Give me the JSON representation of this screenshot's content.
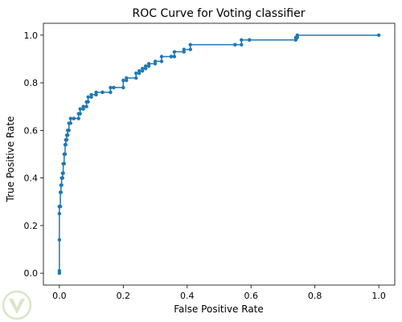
{
  "chart_data": {
    "type": "line",
    "title": "ROC Curve for Voting classifier",
    "xlabel": "False Positive Rate",
    "ylabel": "True Positive Rate",
    "xlim": [
      -0.05,
      1.05
    ],
    "ylim": [
      -0.05,
      1.05
    ],
    "xticks": [
      "0.0",
      "0.2",
      "0.4",
      "0.6",
      "0.8",
      "1.0"
    ],
    "yticks": [
      "0.0",
      "0.2",
      "0.4",
      "0.6",
      "0.8",
      "1.0"
    ],
    "grid": false,
    "marker": "dot",
    "series": [
      {
        "color": "#1f77b4",
        "x": [
          0.0,
          0.0,
          0.0,
          0.0,
          0.0,
          0.0,
          0.003,
          0.003,
          0.005,
          0.005,
          0.007,
          0.007,
          0.01,
          0.01,
          0.012,
          0.012,
          0.015,
          0.015,
          0.018,
          0.018,
          0.02,
          0.02,
          0.023,
          0.023,
          0.026,
          0.026,
          0.03,
          0.03,
          0.035,
          0.035,
          0.045,
          0.045,
          0.06,
          0.06,
          0.065,
          0.065,
          0.075,
          0.075,
          0.085,
          0.085,
          0.09,
          0.09,
          0.1,
          0.1,
          0.115,
          0.115,
          0.135,
          0.135,
          0.16,
          0.16,
          0.17,
          0.17,
          0.2,
          0.2,
          0.21,
          0.21,
          0.24,
          0.24,
          0.25,
          0.25,
          0.26,
          0.26,
          0.27,
          0.27,
          0.28,
          0.28,
          0.3,
          0.3,
          0.32,
          0.32,
          0.35,
          0.35,
          0.36,
          0.36,
          0.39,
          0.39,
          0.41,
          0.41,
          0.55,
          0.55,
          0.57,
          0.57,
          0.595,
          0.595,
          0.74,
          0.74,
          0.745,
          0.745,
          1.0
        ],
        "y": [
          0.0,
          0.01,
          0.14,
          0.25,
          0.28,
          0.28,
          0.28,
          0.34,
          0.34,
          0.37,
          0.37,
          0.4,
          0.4,
          0.42,
          0.42,
          0.46,
          0.46,
          0.5,
          0.5,
          0.54,
          0.54,
          0.56,
          0.56,
          0.58,
          0.58,
          0.6,
          0.6,
          0.63,
          0.63,
          0.65,
          0.65,
          0.65,
          0.65,
          0.67,
          0.67,
          0.69,
          0.69,
          0.7,
          0.7,
          0.72,
          0.72,
          0.74,
          0.74,
          0.75,
          0.75,
          0.76,
          0.76,
          0.76,
          0.76,
          0.78,
          0.78,
          0.78,
          0.78,
          0.81,
          0.81,
          0.82,
          0.82,
          0.84,
          0.84,
          0.85,
          0.85,
          0.86,
          0.86,
          0.87,
          0.87,
          0.88,
          0.88,
          0.89,
          0.89,
          0.91,
          0.91,
          0.91,
          0.91,
          0.93,
          0.93,
          0.94,
          0.94,
          0.96,
          0.96,
          0.96,
          0.96,
          0.98,
          0.98,
          0.98,
          0.98,
          0.99,
          0.99,
          1.0,
          1.0
        ]
      }
    ]
  }
}
